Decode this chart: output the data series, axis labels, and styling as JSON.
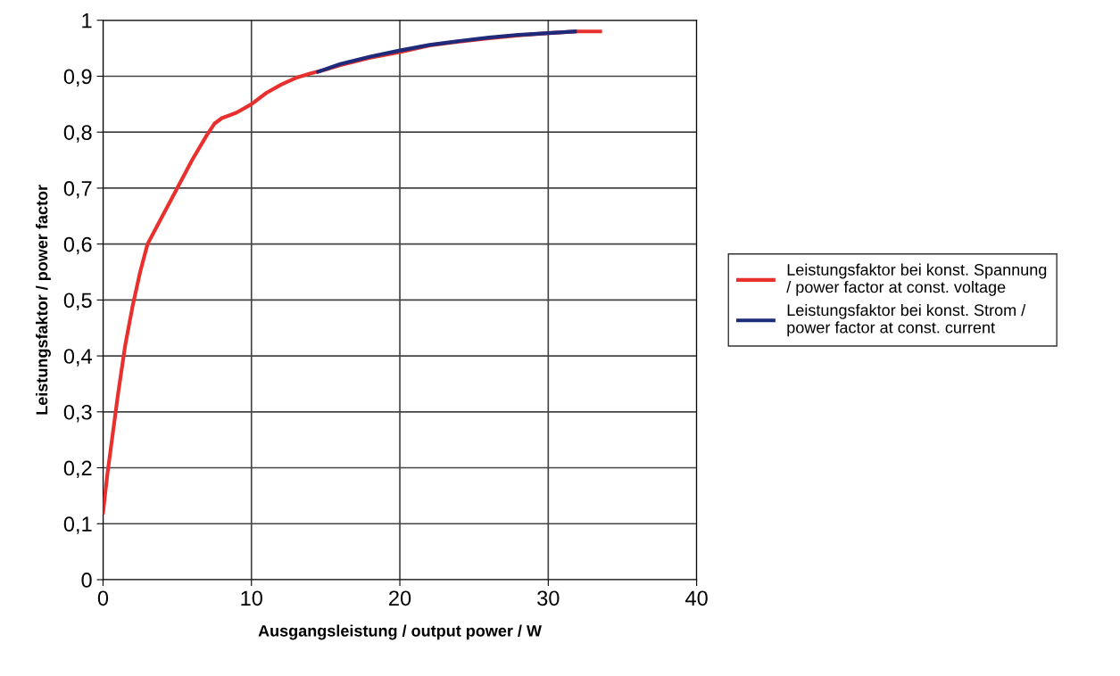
{
  "chart_data": {
    "type": "line",
    "xlabel": "Ausgangsleistung / output power / W",
    "ylabel": "Leistungsfaktor / power factor",
    "xlim": [
      0,
      40
    ],
    "xticks": [
      0,
      10,
      20,
      30,
      40
    ],
    "ylim": [
      0,
      1
    ],
    "yticks": [
      0,
      {
        "value": 0.1,
        "label": "0,1"
      },
      {
        "value": 0.2,
        "label": "0,2"
      },
      {
        "value": 0.3,
        "label": "0,3"
      },
      {
        "value": 0.4,
        "label": "0,4"
      },
      {
        "value": 0.5,
        "label": "0,5"
      },
      {
        "value": 0.6,
        "label": "0,6"
      },
      {
        "value": 0.7,
        "label": "0,7"
      },
      {
        "value": 0.8,
        "label": "0,8"
      },
      {
        "value": 0.9,
        "label": "0,9"
      },
      1
    ],
    "grid": true,
    "legend": "right",
    "marker": "none",
    "line_style": "solid",
    "series": [
      {
        "name": "Leistungsfaktor bei konst. Spannung / power factor at const. voltage",
        "color": "#e8312f",
        "x": [
          0,
          0.3,
          0.6,
          1,
          1.5,
          2,
          2.5,
          3,
          4,
          5,
          6,
          7,
          7.5,
          8,
          9,
          10,
          11,
          12,
          13,
          14,
          15,
          16,
          18,
          20,
          22,
          24,
          26,
          28,
          30,
          32,
          33.5
        ],
        "values": [
          0.12,
          0.19,
          0.25,
          0.33,
          0.42,
          0.49,
          0.55,
          0.6,
          0.65,
          0.7,
          0.75,
          0.795,
          0.815,
          0.825,
          0.835,
          0.85,
          0.87,
          0.885,
          0.897,
          0.905,
          0.912,
          0.92,
          0.933,
          0.943,
          0.955,
          0.962,
          0.968,
          0.973,
          0.977,
          0.98,
          0.98
        ]
      },
      {
        "name": "Leistungsfaktor bei konst. Strom / power factor at const. current",
        "color": "#1f2a7a",
        "x": [
          14.5,
          16,
          18,
          20,
          22,
          24,
          26,
          28,
          30,
          31.8
        ],
        "values": [
          0.908,
          0.922,
          0.935,
          0.946,
          0.956,
          0.963,
          0.969,
          0.974,
          0.977,
          0.98
        ]
      }
    ]
  }
}
